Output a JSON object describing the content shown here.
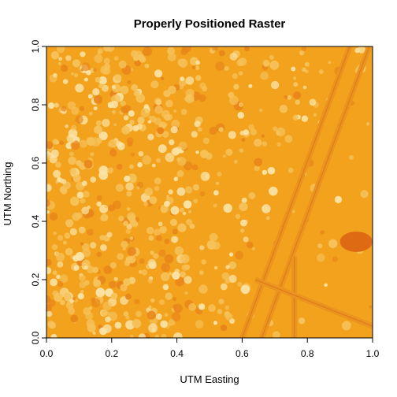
{
  "chart_data": {
    "type": "heatmap",
    "title": "Properly Positioned Raster",
    "xlabel": "UTM Easting",
    "ylabel": "UTM Northing",
    "xlim": [
      0,
      1
    ],
    "ylim": [
      0,
      1
    ],
    "x_ticks": [
      "0.0",
      "0.2",
      "0.4",
      "0.6",
      "0.8",
      "1.0"
    ],
    "y_ticks": [
      "0.0",
      "0.2",
      "0.4",
      "0.6",
      "0.8",
      "1.0"
    ],
    "x_tick_values": [
      0,
      0.2,
      0.4,
      0.6,
      0.8,
      1.0
    ],
    "y_tick_values": [
      0,
      0.2,
      0.4,
      0.6,
      0.8,
      1.0
    ],
    "grid": false,
    "legend": "none",
    "colors": {
      "base": "#f2a21c",
      "light": "#f6c25a",
      "highlight": "#fbe3a6",
      "dark": "#e8861a",
      "deep": "#df6a14",
      "road": "#e9941e"
    },
    "features": [
      {
        "type": "road",
        "from": [
          0.6,
          0.0
        ],
        "to": [
          0.93,
          1.0
        ]
      },
      {
        "type": "road",
        "from": [
          0.66,
          0.0
        ],
        "to": [
          0.99,
          1.0
        ]
      },
      {
        "type": "road",
        "from": [
          0.76,
          0.0
        ],
        "to": [
          0.76,
          0.28
        ]
      },
      {
        "type": "road",
        "from": [
          0.64,
          0.2
        ],
        "to": [
          1.0,
          0.04
        ]
      },
      {
        "type": "pond",
        "center": [
          0.95,
          0.33
        ],
        "rx": 0.05,
        "ry": 0.035
      }
    ]
  }
}
